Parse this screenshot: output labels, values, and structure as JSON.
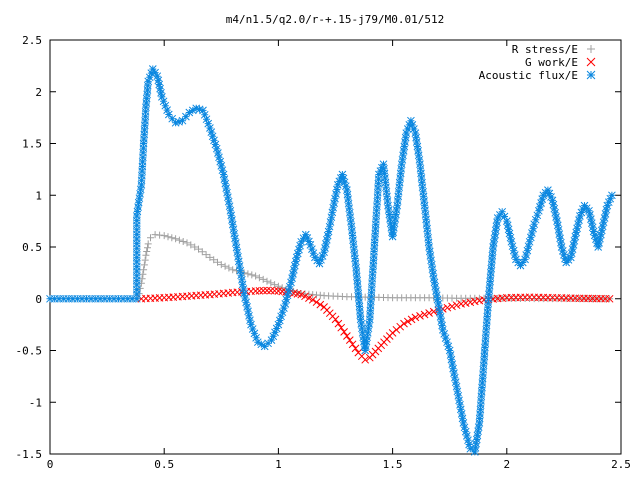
{
  "chart_data": {
    "type": "scatter",
    "title": "m4/n1.5/q2.0/r-+.15-j79/M0.01/512",
    "xlabel": "",
    "ylabel": "",
    "xlim": [
      0,
      2.5
    ],
    "ylim": [
      -1.5,
      2.5
    ],
    "x_ticks": [
      0,
      0.5,
      1,
      1.5,
      2,
      2.5
    ],
    "x_tick_labels": [
      "0",
      "0.5",
      "1",
      "1.5",
      "2",
      "2.5"
    ],
    "y_ticks": [
      -1.5,
      -1,
      -0.5,
      0,
      0.5,
      1,
      1.5,
      2,
      2.5
    ],
    "y_tick_labels": [
      "-1.5",
      "-1",
      "-0.5",
      "0",
      "0.5",
      "1",
      "1.5",
      "2",
      "2.5"
    ],
    "grid": false,
    "legend_position": "top-right",
    "series": [
      {
        "name": "R stress/E",
        "marker": "plus",
        "color": "#a0a0a0",
        "points": [
          [
            0.385,
            0.0
          ],
          [
            0.39,
            0.05
          ],
          [
            0.4,
            0.15
          ],
          [
            0.41,
            0.28
          ],
          [
            0.42,
            0.42
          ],
          [
            0.43,
            0.53
          ],
          [
            0.44,
            0.59
          ],
          [
            0.46,
            0.62
          ],
          [
            0.5,
            0.61
          ],
          [
            0.55,
            0.58
          ],
          [
            0.6,
            0.54
          ],
          [
            0.65,
            0.48
          ],
          [
            0.7,
            0.4
          ],
          [
            0.75,
            0.33
          ],
          [
            0.8,
            0.28
          ],
          [
            0.85,
            0.25
          ],
          [
            0.9,
            0.22
          ],
          [
            0.95,
            0.17
          ],
          [
            1.0,
            0.12
          ],
          [
            1.05,
            0.08
          ],
          [
            1.1,
            0.05
          ],
          [
            1.15,
            0.04
          ],
          [
            1.2,
            0.03
          ],
          [
            1.3,
            0.02
          ],
          [
            1.4,
            0.015
          ],
          [
            1.5,
            0.01
          ],
          [
            1.6,
            0.01
          ],
          [
            1.7,
            0.008
          ],
          [
            1.8,
            0.005
          ],
          [
            1.9,
            0.004
          ],
          [
            2.0,
            0.003
          ],
          [
            2.1,
            0.002
          ],
          [
            2.2,
            0.001
          ],
          [
            2.3,
            0.001
          ],
          [
            2.45,
            0.0
          ]
        ]
      },
      {
        "name": "G work/E",
        "marker": "cross",
        "color": "#ff0000",
        "points": [
          [
            0.4,
            0.0
          ],
          [
            0.5,
            0.01
          ],
          [
            0.6,
            0.025
          ],
          [
            0.7,
            0.04
          ],
          [
            0.8,
            0.06
          ],
          [
            0.9,
            0.075
          ],
          [
            0.95,
            0.08
          ],
          [
            1.0,
            0.075
          ],
          [
            1.05,
            0.06
          ],
          [
            1.1,
            0.04
          ],
          [
            1.15,
            -0.01
          ],
          [
            1.2,
            -0.08
          ],
          [
            1.25,
            -0.2
          ],
          [
            1.3,
            -0.36
          ],
          [
            1.35,
            -0.52
          ],
          [
            1.38,
            -0.59
          ],
          [
            1.4,
            -0.57
          ],
          [
            1.45,
            -0.45
          ],
          [
            1.5,
            -0.33
          ],
          [
            1.55,
            -0.24
          ],
          [
            1.6,
            -0.18
          ],
          [
            1.7,
            -0.11
          ],
          [
            1.8,
            -0.05
          ],
          [
            1.9,
            -0.01
          ],
          [
            2.0,
            0.01
          ],
          [
            2.1,
            0.015
          ],
          [
            2.2,
            0.01
          ],
          [
            2.3,
            0.005
          ],
          [
            2.45,
            0.0
          ]
        ]
      },
      {
        "name": "Acoustic flux/E",
        "marker": "star",
        "color": "#0a87e0",
        "points": [
          [
            0.0,
            0.0
          ],
          [
            0.1,
            0.0
          ],
          [
            0.2,
            0.0
          ],
          [
            0.3,
            0.0
          ],
          [
            0.38,
            0.0
          ],
          [
            0.38,
            0.8
          ],
          [
            0.4,
            1.1
          ],
          [
            0.41,
            1.5
          ],
          [
            0.42,
            1.85
          ],
          [
            0.43,
            2.1
          ],
          [
            0.45,
            2.22
          ],
          [
            0.47,
            2.15
          ],
          [
            0.49,
            1.95
          ],
          [
            0.52,
            1.78
          ],
          [
            0.55,
            1.7
          ],
          [
            0.58,
            1.72
          ],
          [
            0.61,
            1.8
          ],
          [
            0.64,
            1.84
          ],
          [
            0.67,
            1.82
          ],
          [
            0.7,
            1.65
          ],
          [
            0.73,
            1.45
          ],
          [
            0.76,
            1.2
          ],
          [
            0.79,
            0.85
          ],
          [
            0.82,
            0.45
          ],
          [
            0.85,
            0.05
          ],
          [
            0.88,
            -0.25
          ],
          [
            0.91,
            -0.42
          ],
          [
            0.94,
            -0.46
          ],
          [
            0.97,
            -0.4
          ],
          [
            1.0,
            -0.25
          ],
          [
            1.03,
            -0.05
          ],
          [
            1.06,
            0.2
          ],
          [
            1.08,
            0.4
          ],
          [
            1.1,
            0.55
          ],
          [
            1.12,
            0.62
          ],
          [
            1.14,
            0.52
          ],
          [
            1.16,
            0.4
          ],
          [
            1.18,
            0.34
          ],
          [
            1.2,
            0.45
          ],
          [
            1.22,
            0.65
          ],
          [
            1.24,
            0.88
          ],
          [
            1.26,
            1.1
          ],
          [
            1.28,
            1.2
          ],
          [
            1.3,
            1.05
          ],
          [
            1.32,
            0.7
          ],
          [
            1.34,
            0.3
          ],
          [
            1.36,
            -0.2
          ],
          [
            1.38,
            -0.5
          ],
          [
            1.4,
            -0.2
          ],
          [
            1.42,
            0.5
          ],
          [
            1.44,
            1.2
          ],
          [
            1.46,
            1.3
          ],
          [
            1.48,
            0.9
          ],
          [
            1.5,
            0.6
          ],
          [
            1.52,
            0.9
          ],
          [
            1.54,
            1.3
          ],
          [
            1.56,
            1.6
          ],
          [
            1.58,
            1.72
          ],
          [
            1.6,
            1.6
          ],
          [
            1.62,
            1.3
          ],
          [
            1.64,
            0.9
          ],
          [
            1.66,
            0.5
          ],
          [
            1.68,
            0.2
          ],
          [
            1.7,
            -0.05
          ],
          [
            1.72,
            -0.3
          ],
          [
            1.75,
            -0.5
          ],
          [
            1.78,
            -0.85
          ],
          [
            1.81,
            -1.2
          ],
          [
            1.84,
            -1.45
          ],
          [
            1.86,
            -1.48
          ],
          [
            1.88,
            -1.2
          ],
          [
            1.9,
            -0.6
          ],
          [
            1.92,
            0.0
          ],
          [
            1.94,
            0.5
          ],
          [
            1.96,
            0.78
          ],
          [
            1.98,
            0.84
          ],
          [
            2.0,
            0.75
          ],
          [
            2.02,
            0.55
          ],
          [
            2.04,
            0.38
          ],
          [
            2.06,
            0.32
          ],
          [
            2.08,
            0.38
          ],
          [
            2.1,
            0.55
          ],
          [
            2.12,
            0.72
          ],
          [
            2.14,
            0.85
          ],
          [
            2.16,
            1.0
          ],
          [
            2.18,
            1.05
          ],
          [
            2.2,
            0.95
          ],
          [
            2.22,
            0.75
          ],
          [
            2.24,
            0.5
          ],
          [
            2.26,
            0.35
          ],
          [
            2.28,
            0.4
          ],
          [
            2.3,
            0.6
          ],
          [
            2.32,
            0.8
          ],
          [
            2.34,
            0.9
          ],
          [
            2.36,
            0.85
          ],
          [
            2.38,
            0.65
          ],
          [
            2.4,
            0.5
          ],
          [
            2.42,
            0.7
          ],
          [
            2.44,
            0.9
          ],
          [
            2.46,
            1.0
          ]
        ]
      }
    ]
  }
}
